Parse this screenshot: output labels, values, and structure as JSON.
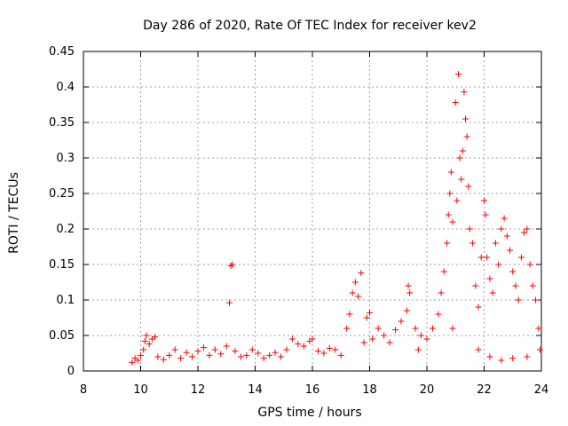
{
  "chart_data": {
    "type": "scatter",
    "title": "Day 286 of 2020, Rate Of TEC Index for receiver kev2",
    "xlabel": "GPS time / hours",
    "ylabel": "ROTI / TECUs",
    "xlim": [
      8,
      24
    ],
    "ylim": [
      0,
      0.45
    ],
    "xticks": [
      8,
      10,
      12,
      14,
      16,
      18,
      20,
      22,
      24
    ],
    "yticks": [
      0,
      0.05,
      0.1,
      0.15,
      0.2,
      0.25,
      0.3,
      0.35,
      0.4,
      0.45
    ],
    "xtick_labels": [
      "8",
      "10",
      "12",
      "14",
      "16",
      "18",
      "20",
      "22",
      "24"
    ],
    "ytick_labels": [
      "0",
      "0.05",
      "0.1",
      "0.15",
      "0.2",
      "0.25",
      "0.3",
      "0.35",
      "0.4",
      "0.45"
    ],
    "grid": true,
    "marker": "+",
    "color": "#ff0000",
    "series": [
      {
        "name": "kev2",
        "points": [
          [
            9.7,
            0.012
          ],
          [
            9.8,
            0.018
          ],
          [
            9.9,
            0.015
          ],
          [
            10.0,
            0.022
          ],
          [
            10.1,
            0.03
          ],
          [
            10.15,
            0.042
          ],
          [
            10.2,
            0.05
          ],
          [
            10.3,
            0.038
          ],
          [
            10.4,
            0.045
          ],
          [
            10.5,
            0.048
          ],
          [
            10.6,
            0.02
          ],
          [
            10.8,
            0.016
          ],
          [
            11.0,
            0.022
          ],
          [
            11.2,
            0.03
          ],
          [
            11.4,
            0.018
          ],
          [
            11.6,
            0.026
          ],
          [
            11.8,
            0.02
          ],
          [
            12.0,
            0.028
          ],
          [
            12.2,
            0.033
          ],
          [
            12.4,
            0.022
          ],
          [
            12.6,
            0.03
          ],
          [
            12.8,
            0.024
          ],
          [
            13.0,
            0.035
          ],
          [
            13.1,
            0.096
          ],
          [
            13.15,
            0.148
          ],
          [
            13.2,
            0.15
          ],
          [
            13.3,
            0.028
          ],
          [
            13.5,
            0.02
          ],
          [
            13.7,
            0.022
          ],
          [
            13.9,
            0.03
          ],
          [
            14.1,
            0.025
          ],
          [
            14.3,
            0.018
          ],
          [
            14.5,
            0.022
          ],
          [
            14.7,
            0.026
          ],
          [
            14.9,
            0.02
          ],
          [
            15.1,
            0.03
          ],
          [
            15.3,
            0.045
          ],
          [
            15.5,
            0.038
          ],
          [
            15.7,
            0.035
          ],
          [
            15.9,
            0.042
          ],
          [
            16.0,
            0.045
          ],
          [
            16.2,
            0.028
          ],
          [
            16.4,
            0.025
          ],
          [
            16.6,
            0.032
          ],
          [
            16.8,
            0.03
          ],
          [
            17.0,
            0.022
          ],
          [
            17.2,
            0.06
          ],
          [
            17.3,
            0.08
          ],
          [
            17.4,
            0.11
          ],
          [
            17.5,
            0.125
          ],
          [
            17.6,
            0.105
          ],
          [
            17.7,
            0.138
          ],
          [
            17.8,
            0.04
          ],
          [
            17.9,
            0.075
          ],
          [
            18.0,
            0.082
          ],
          [
            18.1,
            0.045
          ],
          [
            18.3,
            0.06
          ],
          [
            18.5,
            0.05
          ],
          [
            18.7,
            0.04
          ],
          [
            18.9,
            0.058
          ],
          [
            19.1,
            0.07
          ],
          [
            19.3,
            0.085
          ],
          [
            19.35,
            0.12
          ],
          [
            19.4,
            0.11
          ],
          [
            19.6,
            0.06
          ],
          [
            19.8,
            0.05
          ],
          [
            20.0,
            0.045
          ],
          [
            20.2,
            0.06
          ],
          [
            20.4,
            0.08
          ],
          [
            20.5,
            0.11
          ],
          [
            20.6,
            0.14
          ],
          [
            20.7,
            0.18
          ],
          [
            20.75,
            0.22
          ],
          [
            20.8,
            0.25
          ],
          [
            20.85,
            0.28
          ],
          [
            20.9,
            0.21
          ],
          [
            21.0,
            0.378
          ],
          [
            21.05,
            0.24
          ],
          [
            21.1,
            0.418
          ],
          [
            21.15,
            0.3
          ],
          [
            21.2,
            0.27
          ],
          [
            21.25,
            0.31
          ],
          [
            21.3,
            0.393
          ],
          [
            21.35,
            0.355
          ],
          [
            21.4,
            0.33
          ],
          [
            21.45,
            0.26
          ],
          [
            21.5,
            0.2
          ],
          [
            21.6,
            0.18
          ],
          [
            21.7,
            0.12
          ],
          [
            21.8,
            0.09
          ],
          [
            21.9,
            0.16
          ],
          [
            22.0,
            0.24
          ],
          [
            22.05,
            0.22
          ],
          [
            22.1,
            0.16
          ],
          [
            22.2,
            0.13
          ],
          [
            22.3,
            0.11
          ],
          [
            22.4,
            0.18
          ],
          [
            22.5,
            0.15
          ],
          [
            22.6,
            0.2
          ],
          [
            22.7,
            0.215
          ],
          [
            22.8,
            0.19
          ],
          [
            22.9,
            0.17
          ],
          [
            23.0,
            0.14
          ],
          [
            23.1,
            0.12
          ],
          [
            23.2,
            0.1
          ],
          [
            23.3,
            0.16
          ],
          [
            23.4,
            0.195
          ],
          [
            23.5,
            0.2
          ],
          [
            23.6,
            0.15
          ],
          [
            23.7,
            0.12
          ],
          [
            23.8,
            0.1
          ],
          [
            23.9,
            0.06
          ],
          [
            23.95,
            0.03
          ],
          [
            22.2,
            0.02
          ],
          [
            22.6,
            0.015
          ],
          [
            23.0,
            0.018
          ],
          [
            23.5,
            0.02
          ],
          [
            21.8,
            0.03
          ],
          [
            20.9,
            0.06
          ],
          [
            19.7,
            0.03
          ]
        ]
      }
    ]
  }
}
